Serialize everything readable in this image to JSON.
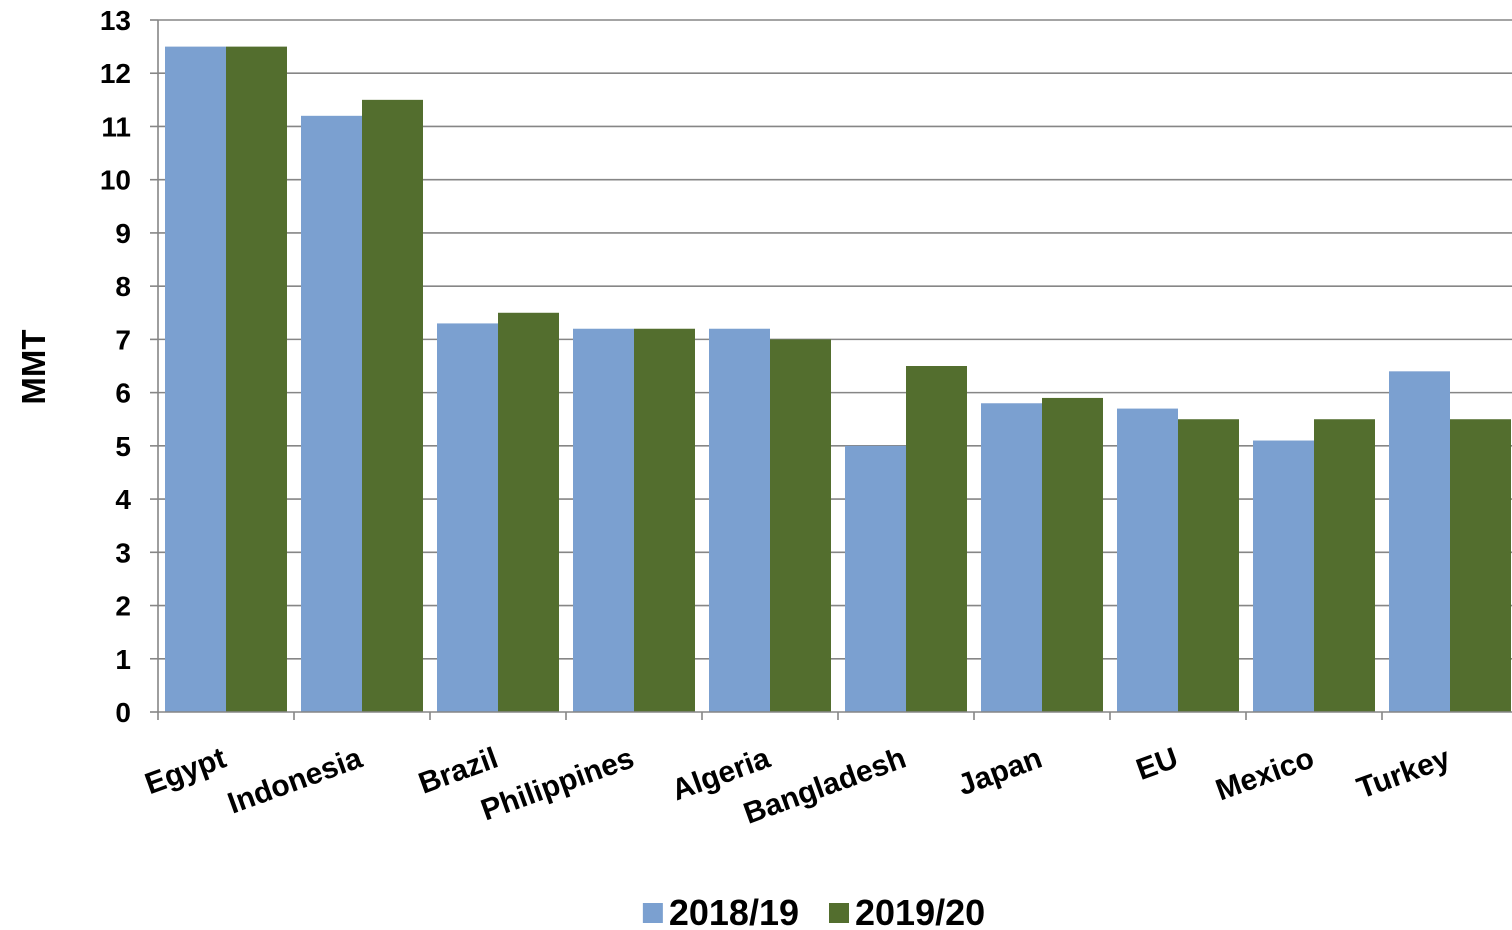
{
  "chart_data": {
    "type": "bar",
    "categories": [
      "Egypt",
      "Indonesia",
      "Brazil",
      "Philippines",
      "Algeria",
      "Bangladesh",
      "Japan",
      "EU",
      "Mexico",
      "Turkey"
    ],
    "series": [
      {
        "name": "2018/19",
        "color": "#7BA0D0",
        "values": [
          12.5,
          11.2,
          7.3,
          7.2,
          7.2,
          5.0,
          5.8,
          5.7,
          5.1,
          6.4
        ]
      },
      {
        "name": "2019/20",
        "color": "#536E2E",
        "values": [
          12.5,
          11.5,
          7.5,
          7.2,
          7.0,
          6.5,
          5.9,
          5.5,
          5.5,
          5.5
        ]
      }
    ],
    "ylabel": "MMT",
    "ylim": [
      0,
      13
    ],
    "yticks": [
      0,
      1,
      2,
      3,
      4,
      5,
      6,
      7,
      8,
      9,
      10,
      11,
      12,
      13
    ],
    "grid": true,
    "legend": "bottom",
    "gridline_color": "#868686"
  }
}
